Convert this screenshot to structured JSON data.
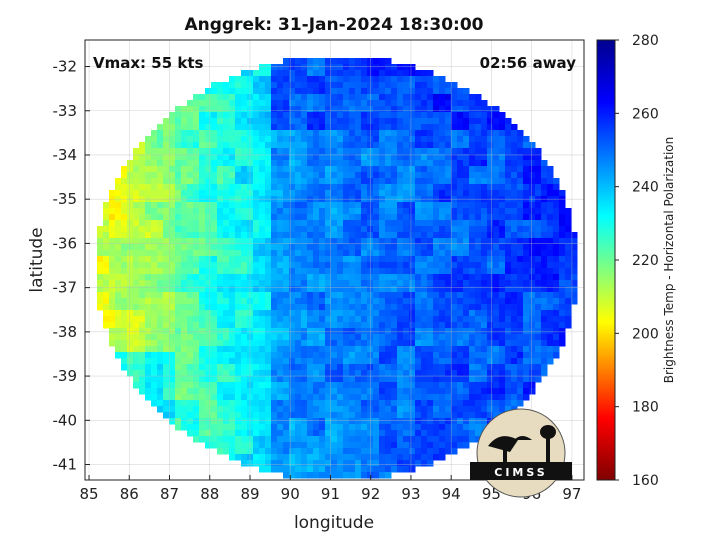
{
  "chart_data": {
    "type": "heatmap",
    "title": "Anggrek: 31-Jan-2024 18:30:00",
    "xlabel": "longitude",
    "ylabel": "latitude",
    "xlim": [
      84.9,
      97.3
    ],
    "ylim": [
      -41.35,
      -31.4
    ],
    "x_ticks": [
      85,
      86,
      87,
      88,
      89,
      90,
      91,
      92,
      93,
      94,
      95,
      96,
      97
    ],
    "y_ticks": [
      -32,
      -33,
      -34,
      -35,
      -36,
      -37,
      -38,
      -39,
      -40,
      -41
    ],
    "grid": true,
    "annotations": {
      "vmax": "Vmax: 55 kts",
      "time_away": "02:56 away"
    },
    "colorbar": {
      "label": "Brightness Temp - Horizontal Polarization",
      "range": [
        160,
        280
      ],
      "ticks": [
        280,
        260,
        240,
        220,
        200,
        180,
        160
      ],
      "colormap": [
        "#7f0000",
        "#ff0000",
        "#ffff00",
        "#00ffff",
        "#0000ff",
        "#00008f"
      ]
    },
    "swath": {
      "center_lon": 91.15,
      "center_lat": -36.55,
      "radius_lon": 6.0,
      "radius_lat": 4.8,
      "west_edge_values_approx": [
        195,
        215
      ],
      "middle_values_approx": [
        235,
        250
      ],
      "east_values_approx": [
        250,
        270
      ]
    },
    "logo": {
      "text": "CIMSS"
    }
  }
}
